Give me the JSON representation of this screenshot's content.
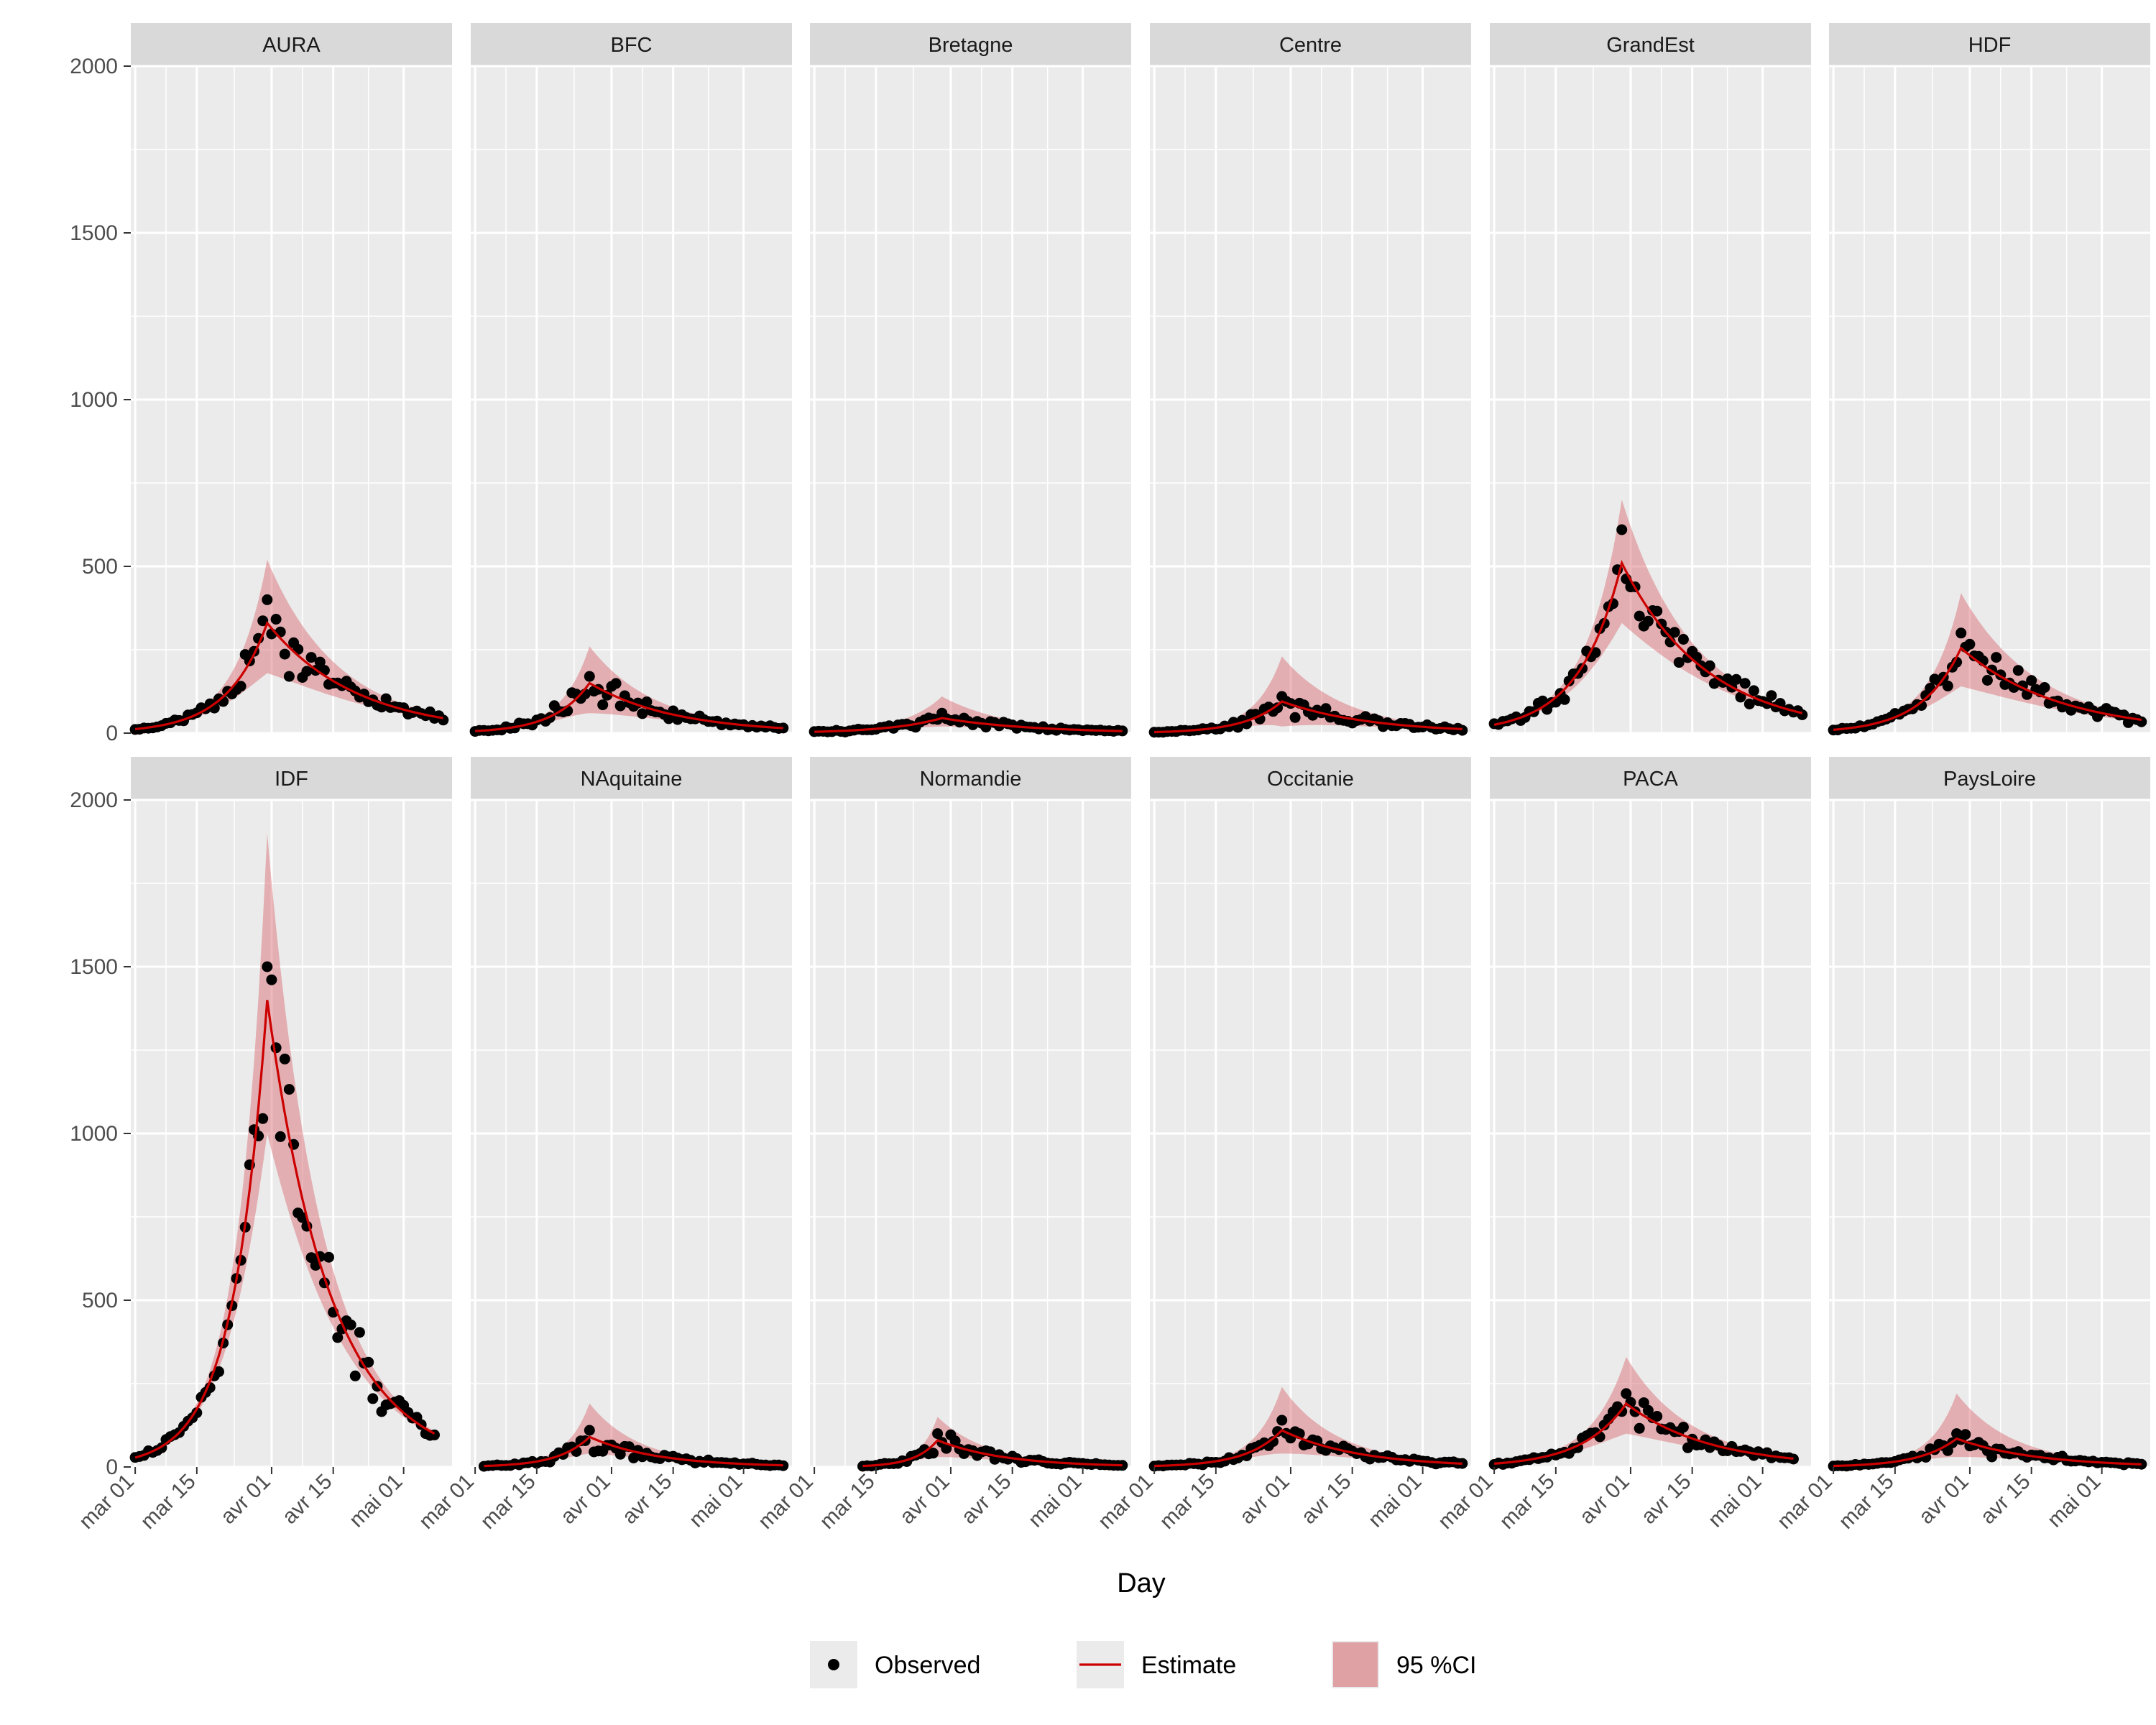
{
  "chart_data": {
    "type": "line",
    "layout": "facet-grid 2x6",
    "xlabel": "Day",
    "ylabel": "",
    "ylim": [
      0,
      2000
    ],
    "yticks": [
      0,
      500,
      1000,
      1500,
      2000
    ],
    "xlim": [
      "2020-02-29",
      "2020-05-12"
    ],
    "xticks": [
      {
        "date": "2020-03-01",
        "label": "mar 01"
      },
      {
        "date": "2020-03-15",
        "label": "mar 15"
      },
      {
        "date": "2020-04-01",
        "label": "avr 01"
      },
      {
        "date": "2020-04-15",
        "label": "avr 15"
      },
      {
        "date": "2020-05-01",
        "label": "mai 01"
      }
    ],
    "grid": true,
    "legend": {
      "position": "bottom",
      "items": [
        {
          "key": "observed",
          "label": "Observed"
        },
        {
          "key": "estimate",
          "label": "Estimate"
        },
        {
          "key": "ci",
          "label": "95 %CI"
        }
      ]
    },
    "colors": {
      "panel": "#ebebeb",
      "grid": "#ffffff",
      "strip": "#d9d9d9",
      "point": "#000000",
      "line": "#cc0000",
      "ribbon": "#d7646a"
    },
    "facets": [
      {
        "name": "AURA",
        "start": "2020-03-01",
        "end": "2020-05-10",
        "peak_date": "2020-03-31",
        "peak": 330,
        "base": 12,
        "end_value": 45,
        "ci_peak": [
          180,
          520
        ],
        "observed_peak": 400,
        "noise": 0.2
      },
      {
        "name": "BFC",
        "start": "2020-03-01",
        "end": "2020-05-10",
        "peak_date": "2020-03-27",
        "peak": 150,
        "base": 6,
        "end_value": 15,
        "ci_peak": [
          60,
          260
        ],
        "observed_peak": 170,
        "noise": 0.25
      },
      {
        "name": "Bretagne",
        "start": "2020-03-01",
        "end": "2020-05-10",
        "peak_date": "2020-03-30",
        "peak": 45,
        "base": 4,
        "end_value": 6,
        "ci_peak": [
          20,
          110
        ],
        "observed_peak": 60,
        "noise": 0.3
      },
      {
        "name": "Centre",
        "start": "2020-03-01",
        "end": "2020-05-10",
        "peak_date": "2020-03-30",
        "peak": 95,
        "base": 3,
        "end_value": 12,
        "ci_peak": [
          20,
          230
        ],
        "observed_peak": 110,
        "noise": 0.3
      },
      {
        "name": "GrandEst",
        "start": "2020-03-01",
        "end": "2020-05-10",
        "peak_date": "2020-03-30",
        "peak": 510,
        "base": 25,
        "end_value": 60,
        "ci_peak": [
          330,
          700
        ],
        "observed_peak": 610,
        "noise": 0.2
      },
      {
        "name": "HDF",
        "start": "2020-03-01",
        "end": "2020-05-10",
        "peak_date": "2020-03-30",
        "peak": 255,
        "base": 10,
        "end_value": 40,
        "ci_peak": [
          140,
          420
        ],
        "observed_peak": 300,
        "noise": 0.2
      },
      {
        "name": "IDF",
        "start": "2020-03-01",
        "end": "2020-05-08",
        "peak_date": "2020-03-31",
        "peak": 1400,
        "base": 28,
        "end_value": 100,
        "ci_peak": [
          1000,
          1900
        ],
        "observed_peak": 1500,
        "noise": 0.18
      },
      {
        "name": "NAquitaine",
        "start": "2020-03-03",
        "end": "2020-05-10",
        "peak_date": "2020-03-27",
        "peak": 90,
        "base": 3,
        "end_value": 5,
        "ci_peak": [
          40,
          190
        ],
        "observed_peak": 110,
        "noise": 0.3
      },
      {
        "name": "Normandie",
        "start": "2020-03-12",
        "end": "2020-05-10",
        "peak_date": "2020-03-29",
        "peak": 80,
        "base": 3,
        "end_value": 5,
        "ci_peak": [
          30,
          150
        ],
        "observed_peak": 100,
        "noise": 0.3
      },
      {
        "name": "Occitanie",
        "start": "2020-03-01",
        "end": "2020-05-10",
        "peak_date": "2020-03-30",
        "peak": 110,
        "base": 3,
        "end_value": 10,
        "ci_peak": [
          40,
          240
        ],
        "observed_peak": 140,
        "noise": 0.3
      },
      {
        "name": "PACA",
        "start": "2020-03-01",
        "end": "2020-05-08",
        "peak_date": "2020-03-31",
        "peak": 190,
        "base": 10,
        "end_value": 25,
        "ci_peak": [
          100,
          330
        ],
        "observed_peak": 220,
        "noise": 0.25
      },
      {
        "name": "PaysLoire",
        "start": "2020-03-01",
        "end": "2020-05-10",
        "peak_date": "2020-03-29",
        "peak": 85,
        "base": 3,
        "end_value": 8,
        "ci_peak": [
          30,
          220
        ],
        "observed_peak": 100,
        "noise": 0.3
      }
    ]
  }
}
